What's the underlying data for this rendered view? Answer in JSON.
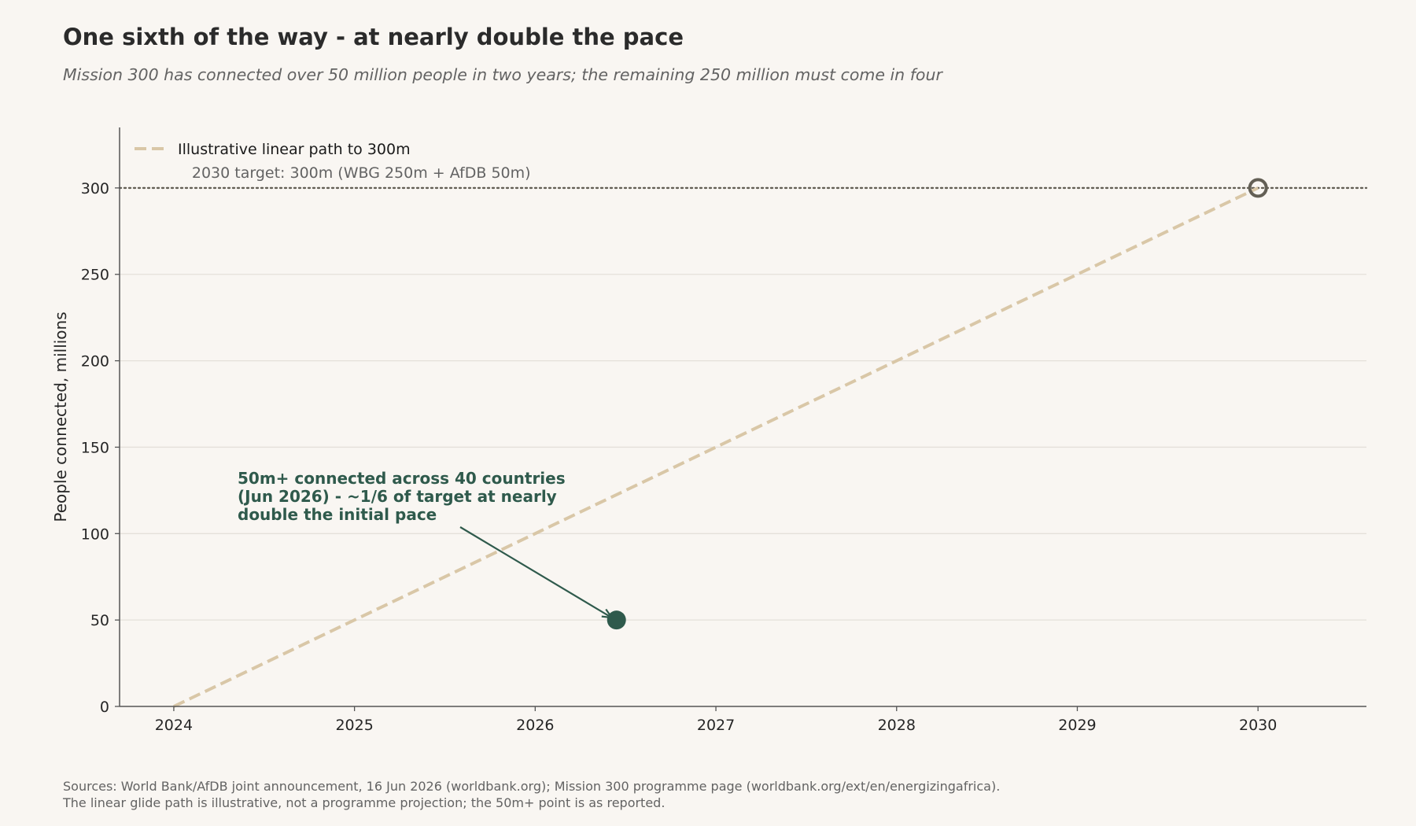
{
  "title": "One sixth of the way - at nearly double the pace",
  "subtitle": "Mission 300 has connected over 50 million people in two years; the remaining 250 million must come in four",
  "sources": [
    "Sources: World Bank/AfDB joint announcement, 16 Jun 2026 (worldbank.org); Mission 300 programme page (worldbank.org/ext/en/energizingafrica).",
    "The linear glide path is illustrative, not a programme projection; the 50m+ point is as reported."
  ],
  "colors": {
    "background": "#f9f6f2",
    "path": "#d9c7a7",
    "actual": "#2f5a4c",
    "target": "#635f55",
    "axis": "#555555",
    "grid": "#e4e0da"
  },
  "chart_data": {
    "type": "line",
    "xlabel": "",
    "ylabel": "People connected, millions",
    "xlim": [
      2023.7,
      2030.6
    ],
    "ylim": [
      0,
      335
    ],
    "xticks": [
      "2024",
      "2025",
      "2026",
      "2027",
      "2028",
      "2029",
      "2030"
    ],
    "yticks": [
      "0",
      "50",
      "100",
      "150",
      "200",
      "250",
      "300"
    ],
    "grid": "horizontal",
    "legend_position": "top-left",
    "series": [
      {
        "name": "Illustrative linear path to 300m",
        "style": "dashed",
        "x": [
          2024,
          2030
        ],
        "y": [
          0,
          300
        ]
      }
    ],
    "points": [
      {
        "label": "actual",
        "x": 2026.45,
        "y": 50,
        "style": "filled"
      },
      {
        "label": "target",
        "x": 2030,
        "y": 300,
        "style": "hollow"
      }
    ],
    "reference_line": {
      "y": 300,
      "style": "dotted",
      "label": "2030 target: 300m (WBG 250m + AfDB 50m)"
    },
    "annotation": {
      "lines": [
        "50m+ connected across 40 countries",
        "(Jun 2026) - ~1/6 of target at nearly",
        "double the initial pace"
      ],
      "arrow_to": {
        "x": 2026.45,
        "y": 50
      }
    }
  }
}
